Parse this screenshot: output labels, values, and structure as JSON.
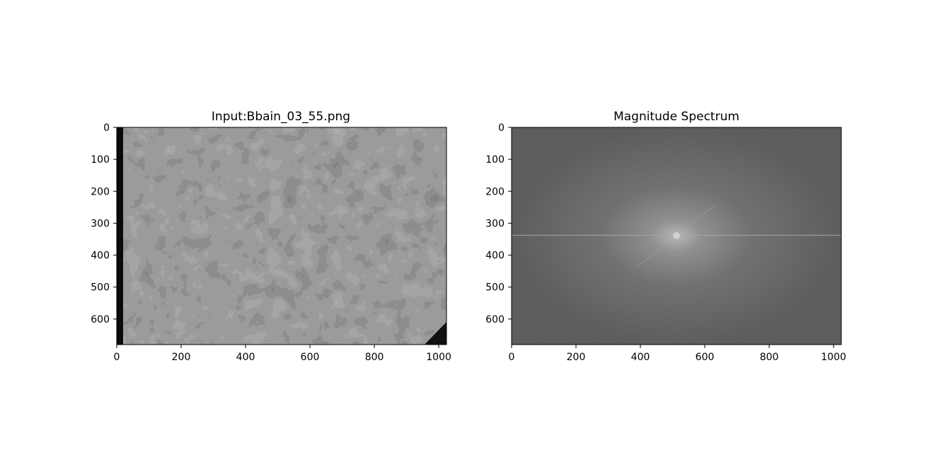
{
  "chart_data": [
    {
      "type": "image",
      "title": "Input:Bbain_03_55.png",
      "xlabel": "",
      "ylabel": "",
      "xlim": [
        0,
        1024
      ],
      "ylim": [
        680,
        0
      ],
      "y_inverted": true,
      "xticks": [
        0,
        200,
        400,
        600,
        800,
        1000
      ],
      "yticks": [
        0,
        100,
        200,
        300,
        400,
        500,
        600
      ],
      "grid": false,
      "colormap": "gray",
      "image_content": "grayscale electron micrograph of tissue"
    },
    {
      "type": "image",
      "title": "Magnitude Spectrum",
      "xlabel": "",
      "ylabel": "",
      "xlim": [
        0,
        1024
      ],
      "ylim": [
        680,
        0
      ],
      "y_inverted": true,
      "xticks": [
        0,
        200,
        400,
        600,
        800,
        1000
      ],
      "yticks": [
        0,
        100,
        200,
        300,
        400,
        500,
        600
      ],
      "grid": false,
      "colormap": "gray",
      "center": [
        512,
        340
      ],
      "image_content": "log magnitude of 2D Fourier transform, bright at center"
    }
  ]
}
